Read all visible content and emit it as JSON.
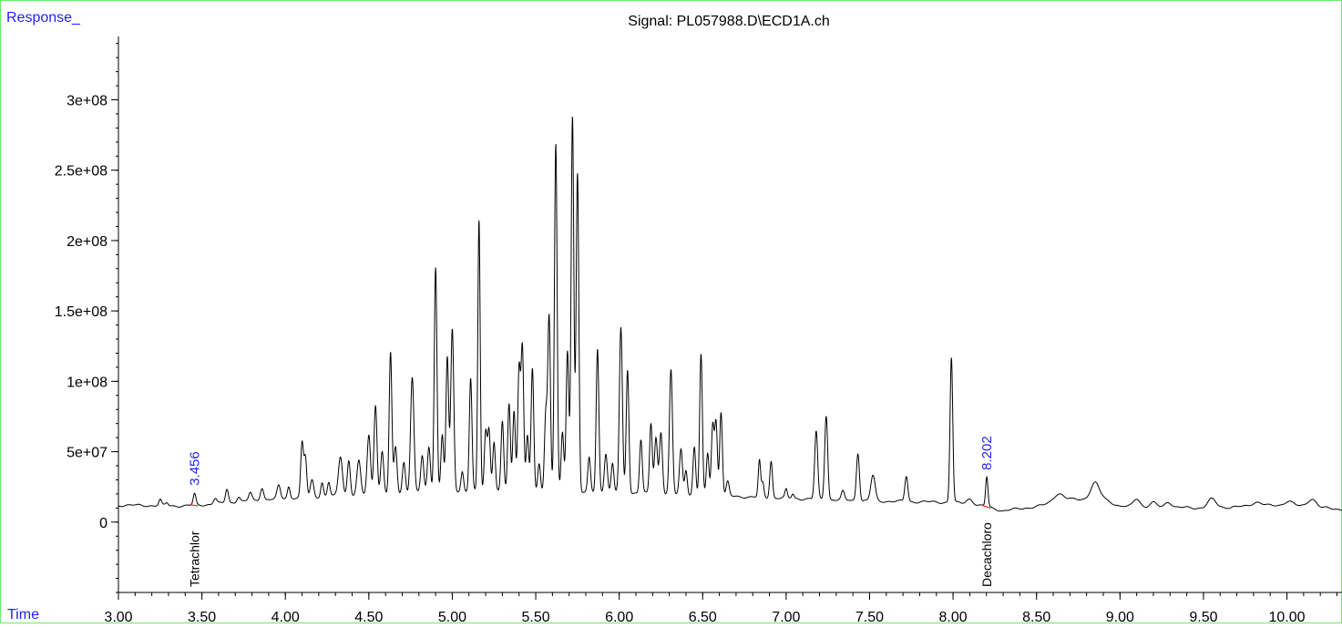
{
  "chart_data": {
    "type": "line",
    "title": "Signal: PL057988.D\\ECD1A.ch",
    "ylabel": "Response_",
    "xlabel": "Time",
    "xlim": [
      3.0,
      10.33
    ],
    "ylim": [
      -50000000,
      345000000
    ],
    "x_ticks": [
      3.0,
      3.5,
      4.0,
      4.5,
      5.0,
      5.5,
      6.0,
      6.5,
      7.0,
      7.5,
      8.0,
      8.5,
      9.0,
      9.5,
      10.0
    ],
    "x_tick_labels": [
      "3.00",
      "3.50",
      "4.00",
      "4.50",
      "5.00",
      "5.50",
      "6.00",
      "6.50",
      "7.00",
      "7.50",
      "8.00",
      "8.50",
      "9.00",
      "9.50",
      "10.00"
    ],
    "y_ticks": [
      0,
      50000000,
      100000000,
      150000000,
      200000000,
      250000000,
      300000000
    ],
    "y_tick_labels": [
      "0",
      "5e+07",
      "1e+08",
      "1.5e+08",
      "2e+08",
      "2.5e+08",
      "3e+08"
    ],
    "grid": false,
    "baseline": {
      "x": [
        3.0,
        3.4,
        3.6,
        4.0,
        5.0,
        6.0,
        7.0,
        7.5,
        8.0,
        8.2,
        8.3,
        8.5,
        8.7,
        8.9,
        9.0,
        9.5,
        10.0,
        10.33
      ],
      "y": [
        12000000,
        11500000,
        13000000,
        17000000,
        22000000,
        21000000,
        17000000,
        15000000,
        14000000,
        11000000,
        8000000,
        11000000,
        16000000,
        17000000,
        11000000,
        10000000,
        12000000,
        9000000
      ]
    },
    "peaks": [
      {
        "t": 3.25,
        "h": 4000000,
        "w": 0.008
      },
      {
        "t": 3.29,
        "h": 2000000,
        "w": 0.008
      },
      {
        "t": 3.456,
        "h": 8000000,
        "w": 0.008
      },
      {
        "t": 3.58,
        "h": 4000000,
        "w": 0.01
      },
      {
        "t": 3.65,
        "h": 10000000,
        "w": 0.009
      },
      {
        "t": 3.72,
        "h": 4000000,
        "w": 0.01
      },
      {
        "t": 3.79,
        "h": 6000000,
        "w": 0.01
      },
      {
        "t": 3.86,
        "h": 9000000,
        "w": 0.01
      },
      {
        "t": 3.96,
        "h": 9000000,
        "w": 0.01
      },
      {
        "t": 4.02,
        "h": 8000000,
        "w": 0.008
      },
      {
        "t": 4.1,
        "h": 38000000,
        "w": 0.008
      },
      {
        "t": 4.12,
        "h": 28000000,
        "w": 0.008
      },
      {
        "t": 4.16,
        "h": 12000000,
        "w": 0.01
      },
      {
        "t": 4.22,
        "h": 10000000,
        "w": 0.008
      },
      {
        "t": 4.26,
        "h": 10000000,
        "w": 0.008
      },
      {
        "t": 4.33,
        "h": 28000000,
        "w": 0.012
      },
      {
        "t": 4.38,
        "h": 25000000,
        "w": 0.009
      },
      {
        "t": 4.44,
        "h": 24000000,
        "w": 0.011
      },
      {
        "t": 4.5,
        "h": 42000000,
        "w": 0.01
      },
      {
        "t": 4.54,
        "h": 64000000,
        "w": 0.009
      },
      {
        "t": 4.58,
        "h": 30000000,
        "w": 0.009
      },
      {
        "t": 4.63,
        "h": 100000000,
        "w": 0.008
      },
      {
        "t": 4.66,
        "h": 33000000,
        "w": 0.009
      },
      {
        "t": 4.71,
        "h": 22000000,
        "w": 0.009
      },
      {
        "t": 4.76,
        "h": 82000000,
        "w": 0.01
      },
      {
        "t": 4.82,
        "h": 26000000,
        "w": 0.009
      },
      {
        "t": 4.86,
        "h": 32000000,
        "w": 0.009
      },
      {
        "t": 4.9,
        "h": 160000000,
        "w": 0.008
      },
      {
        "t": 4.94,
        "h": 40000000,
        "w": 0.008
      },
      {
        "t": 4.97,
        "h": 95000000,
        "w": 0.008
      },
      {
        "t": 5.0,
        "h": 115000000,
        "w": 0.009
      },
      {
        "t": 5.06,
        "h": 14000000,
        "w": 0.008
      },
      {
        "t": 5.11,
        "h": 80000000,
        "w": 0.008
      },
      {
        "t": 5.16,
        "h": 193000000,
        "w": 0.007
      },
      {
        "t": 5.2,
        "h": 42000000,
        "w": 0.008
      },
      {
        "t": 5.22,
        "h": 44000000,
        "w": 0.008
      },
      {
        "t": 5.25,
        "h": 35000000,
        "w": 0.008
      },
      {
        "t": 5.3,
        "h": 50000000,
        "w": 0.008
      },
      {
        "t": 5.34,
        "h": 62000000,
        "w": 0.008
      },
      {
        "t": 5.37,
        "h": 58000000,
        "w": 0.008
      },
      {
        "t": 5.4,
        "h": 87000000,
        "w": 0.008
      },
      {
        "t": 5.42,
        "h": 102000000,
        "w": 0.008
      },
      {
        "t": 5.45,
        "h": 40000000,
        "w": 0.008
      },
      {
        "t": 5.48,
        "h": 87000000,
        "w": 0.008
      },
      {
        "t": 5.52,
        "h": 20000000,
        "w": 0.008
      },
      {
        "t": 5.56,
        "h": 55000000,
        "w": 0.008
      },
      {
        "t": 5.58,
        "h": 125000000,
        "w": 0.008
      },
      {
        "t": 5.62,
        "h": 247000000,
        "w": 0.008
      },
      {
        "t": 5.66,
        "h": 42000000,
        "w": 0.008
      },
      {
        "t": 5.69,
        "h": 100000000,
        "w": 0.008
      },
      {
        "t": 5.72,
        "h": 268000000,
        "w": 0.008
      },
      {
        "t": 5.75,
        "h": 227000000,
        "w": 0.008
      },
      {
        "t": 5.82,
        "h": 24000000,
        "w": 0.008
      },
      {
        "t": 5.87,
        "h": 102000000,
        "w": 0.008
      },
      {
        "t": 5.92,
        "h": 28000000,
        "w": 0.009
      },
      {
        "t": 5.96,
        "h": 20000000,
        "w": 0.008
      },
      {
        "t": 6.01,
        "h": 117000000,
        "w": 0.009
      },
      {
        "t": 6.05,
        "h": 88000000,
        "w": 0.008
      },
      {
        "t": 6.13,
        "h": 38000000,
        "w": 0.008
      },
      {
        "t": 6.19,
        "h": 50000000,
        "w": 0.008
      },
      {
        "t": 6.22,
        "h": 40000000,
        "w": 0.009
      },
      {
        "t": 6.25,
        "h": 44000000,
        "w": 0.009
      },
      {
        "t": 6.31,
        "h": 88000000,
        "w": 0.009
      },
      {
        "t": 6.37,
        "h": 32000000,
        "w": 0.009
      },
      {
        "t": 6.4,
        "h": 18000000,
        "w": 0.008
      },
      {
        "t": 6.45,
        "h": 34000000,
        "w": 0.008
      },
      {
        "t": 6.49,
        "h": 100000000,
        "w": 0.008
      },
      {
        "t": 6.53,
        "h": 30000000,
        "w": 0.008
      },
      {
        "t": 6.56,
        "h": 50000000,
        "w": 0.008
      },
      {
        "t": 6.58,
        "h": 52000000,
        "w": 0.008
      },
      {
        "t": 6.61,
        "h": 60000000,
        "w": 0.008
      },
      {
        "t": 6.65,
        "h": 10000000,
        "w": 0.009
      },
      {
        "t": 6.84,
        "h": 26000000,
        "w": 0.007
      },
      {
        "t": 6.86,
        "h": 10000000,
        "w": 0.007
      },
      {
        "t": 6.91,
        "h": 26000000,
        "w": 0.008
      },
      {
        "t": 7.0,
        "h": 6000000,
        "w": 0.007
      },
      {
        "t": 7.04,
        "h": 3000000,
        "w": 0.007
      },
      {
        "t": 7.18,
        "h": 48000000,
        "w": 0.009
      },
      {
        "t": 7.24,
        "h": 60000000,
        "w": 0.009
      },
      {
        "t": 7.34,
        "h": 6000000,
        "w": 0.009
      },
      {
        "t": 7.43,
        "h": 34000000,
        "w": 0.009
      },
      {
        "t": 7.52,
        "h": 18000000,
        "w": 0.013
      },
      {
        "t": 7.72,
        "h": 18000000,
        "w": 0.009
      },
      {
        "t": 7.99,
        "h": 103000000,
        "w": 0.008
      },
      {
        "t": 8.202,
        "h": 21000000,
        "w": 0.007
      },
      {
        "t": 8.1,
        "h": 4000000,
        "w": 0.02
      },
      {
        "t": 8.63,
        "h": 6000000,
        "w": 0.03
      },
      {
        "t": 8.85,
        "h": 11000000,
        "w": 0.025
      },
      {
        "t": 9.1,
        "h": 6000000,
        "w": 0.02
      },
      {
        "t": 9.2,
        "h": 3000000,
        "w": 0.02
      },
      {
        "t": 9.29,
        "h": 4000000,
        "w": 0.02
      },
      {
        "t": 9.55,
        "h": 6000000,
        "w": 0.025
      },
      {
        "t": 9.82,
        "h": 3000000,
        "w": 0.03
      },
      {
        "t": 10.01,
        "h": 3000000,
        "w": 0.025
      },
      {
        "t": 10.15,
        "h": 6000000,
        "w": 0.025
      }
    ],
    "annotations": [
      {
        "rt_label": "3.456",
        "compound": "Tetrachlor",
        "x": 3.456,
        "y": 22000000
      },
      {
        "rt_label": "8.202",
        "compound": "Decachloro",
        "x": 8.202,
        "y": 33000000
      }
    ],
    "colors": {
      "trace": "#000000",
      "axis": "#000000",
      "rt_label": "#1f1fff",
      "integration": "#ff0000",
      "frame": "#66ee66"
    }
  }
}
